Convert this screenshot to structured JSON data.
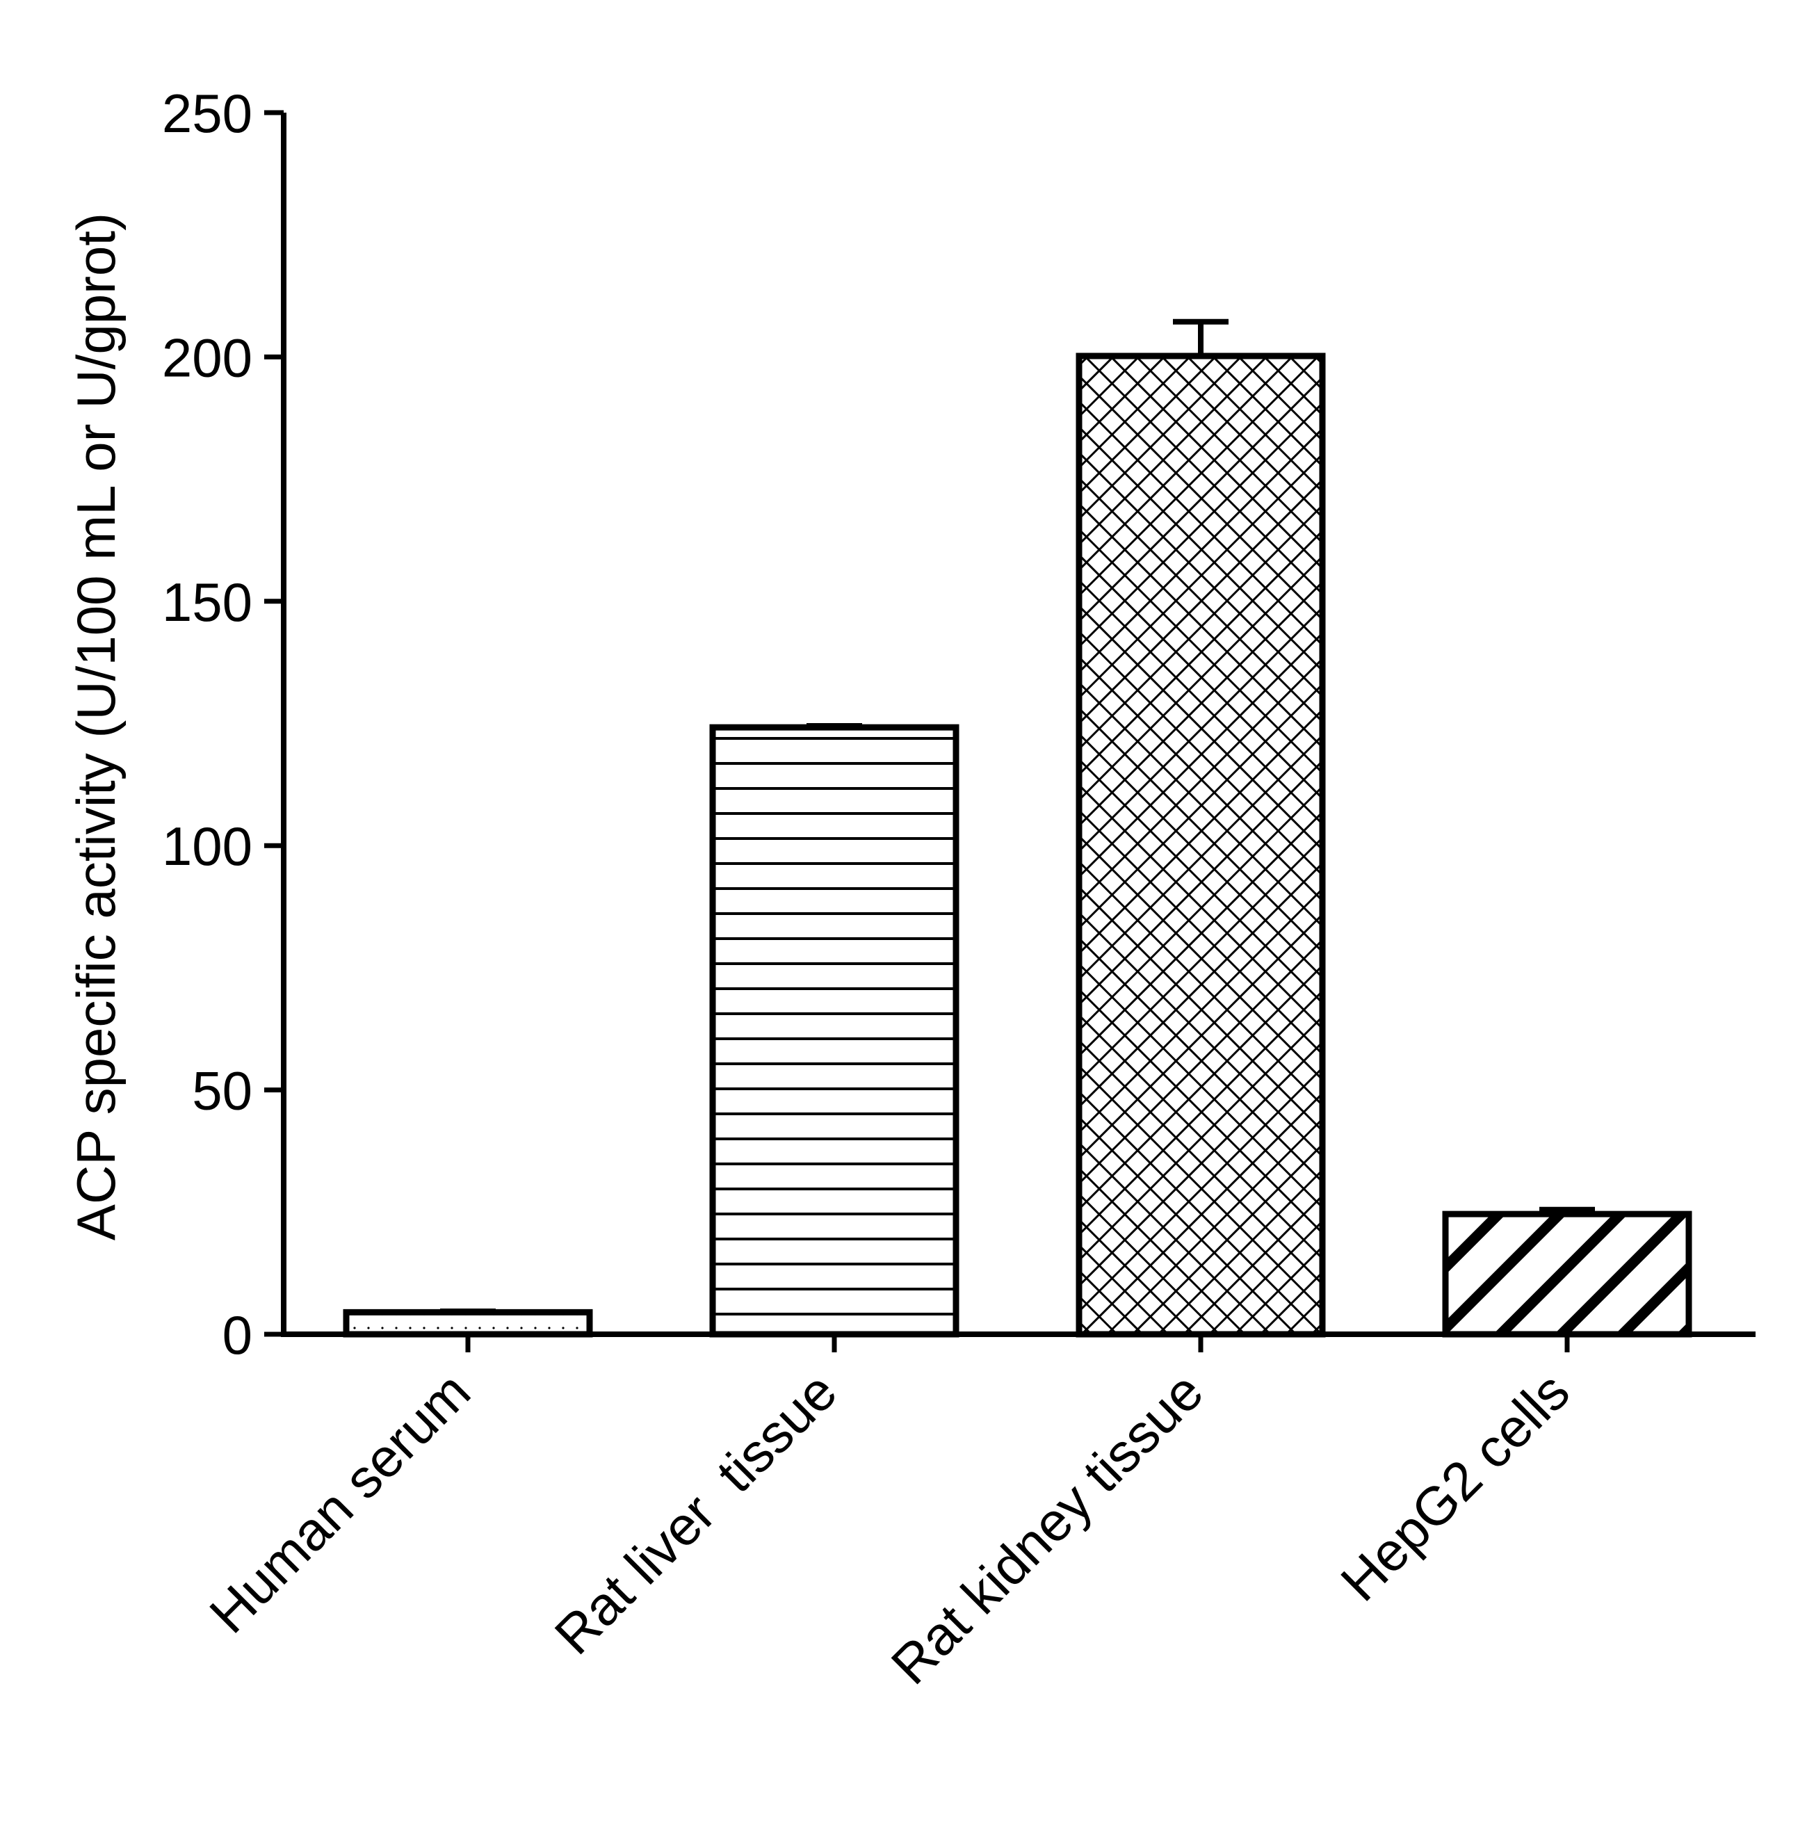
{
  "chart_data": {
    "type": "bar",
    "title": "",
    "xlabel": "",
    "ylabel": "ACP specific activity (U/100 mL or U/gprot)",
    "categories": [
      "Human serum",
      "Rat liver  tissue",
      "Rat kidney tissue",
      "HepG2 cells"
    ],
    "values": [
      4.5,
      124.2,
      200.2,
      24.6
    ],
    "errors": [
      0.2,
      0.3,
      7.0,
      0.9
    ],
    "patterns": [
      "dots",
      "horizontal",
      "crosshatch",
      "diagonal"
    ],
    "ylim": [
      0,
      250
    ],
    "yticks": [
      0,
      50,
      100,
      150,
      200,
      250
    ],
    "grid": false,
    "colors": {
      "stroke": "#000000",
      "fill": "#ffffff"
    }
  }
}
